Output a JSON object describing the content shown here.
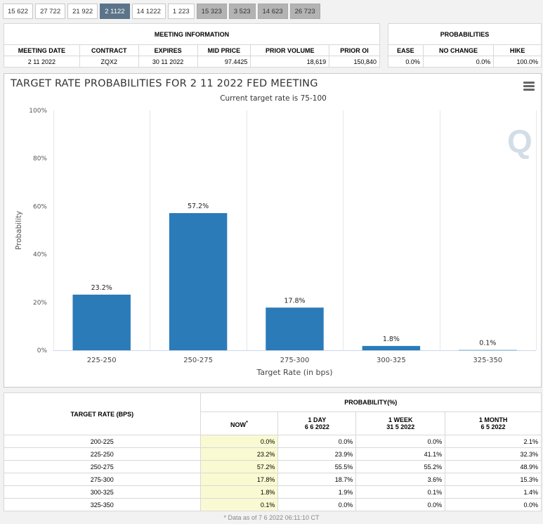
{
  "tabs": [
    {
      "label": "15 622",
      "state": "normal"
    },
    {
      "label": "27 722",
      "state": "normal"
    },
    {
      "label": "21 922",
      "state": "normal"
    },
    {
      "label": "2 1122",
      "state": "active"
    },
    {
      "label": "14 1222",
      "state": "normal"
    },
    {
      "label": "1 223",
      "state": "normal"
    },
    {
      "label": "15 323",
      "state": "dim"
    },
    {
      "label": "3 523",
      "state": "dim"
    },
    {
      "label": "14 623",
      "state": "dim"
    },
    {
      "label": "26 723",
      "state": "dim"
    }
  ],
  "meeting_info": {
    "heading": "MEETING INFORMATION",
    "columns": [
      "MEETING DATE",
      "CONTRACT",
      "EXPIRES",
      "MID PRICE",
      "PRIOR VOLUME",
      "PRIOR OI"
    ],
    "row": [
      "2 11 2022",
      "ZQX2",
      "30 11 2022",
      "97.4425",
      "18,619",
      "150,840"
    ]
  },
  "probabilities_summary": {
    "heading": "PROBABILITIES",
    "columns": [
      "EASE",
      "NO CHANGE",
      "HIKE"
    ],
    "row": [
      "0.0%",
      "0.0%",
      "100.0%"
    ]
  },
  "chart_data": {
    "type": "bar",
    "title": "TARGET RATE PROBABILITIES FOR 2 11 2022 FED MEETING",
    "subtitle": "Current target rate is 75-100",
    "xlabel": "Target Rate (in bps)",
    "ylabel": "Probability",
    "categories": [
      "225-250",
      "250-275",
      "275-300",
      "300-325",
      "325-350"
    ],
    "values": [
      23.2,
      57.2,
      17.8,
      1.8,
      0.1
    ],
    "data_labels": [
      "23.2%",
      "57.2%",
      "17.8%",
      "1.8%",
      "0.1%"
    ],
    "ylim": [
      0,
      100
    ],
    "yticks": [
      0,
      20,
      40,
      60,
      80,
      100
    ],
    "ytick_labels": [
      "0%",
      "20%",
      "40%",
      "60%",
      "80%",
      "100%"
    ],
    "bar_color": "#2b7bb9",
    "grid": true
  },
  "probability_table": {
    "rate_header": "TARGET RATE (BPS)",
    "group_header": "PROBABILITY(%)",
    "columns": [
      {
        "label": "NOW",
        "sublabel": "",
        "note": "*"
      },
      {
        "label": "1 DAY",
        "sublabel": "6 6 2022",
        "note": ""
      },
      {
        "label": "1 WEEK",
        "sublabel": "31 5 2022",
        "note": ""
      },
      {
        "label": "1 MONTH",
        "sublabel": "6 5 2022",
        "note": ""
      }
    ],
    "rows": [
      {
        "rate": "200-225",
        "values": [
          "0.0%",
          "0.0%",
          "0.0%",
          "2.1%"
        ]
      },
      {
        "rate": "225-250",
        "values": [
          "23.2%",
          "23.9%",
          "41.1%",
          "32.3%"
        ]
      },
      {
        "rate": "250-275",
        "values": [
          "57.2%",
          "55.5%",
          "55.2%",
          "48.9%"
        ]
      },
      {
        "rate": "275-300",
        "values": [
          "17.8%",
          "18.7%",
          "3.6%",
          "15.3%"
        ]
      },
      {
        "rate": "300-325",
        "values": [
          "1.8%",
          "1.9%",
          "0.1%",
          "1.4%"
        ]
      },
      {
        "rate": "325-350",
        "values": [
          "0.1%",
          "0.0%",
          "0.0%",
          "0.0%"
        ]
      }
    ],
    "footnote": "* Data as of 7 6 2022 06:11:10 CT"
  }
}
